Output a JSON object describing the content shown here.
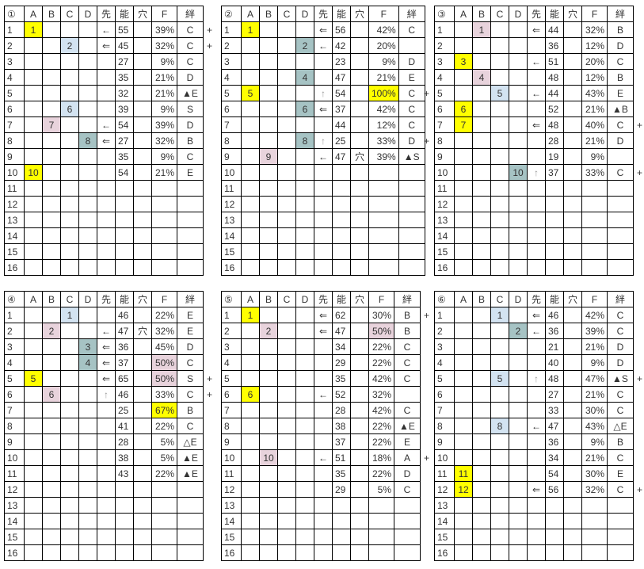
{
  "headers": [
    "A",
    "B",
    "C",
    "D",
    "先",
    "能",
    "穴",
    "F",
    "絆"
  ],
  "column_colors": {
    "A": "#ffff00",
    "B": "#e8d3dc",
    "C": "#d3e3f1",
    "D": "#a6c3c4"
  },
  "row_fields": [
    "row",
    "A",
    "B",
    "C",
    "D",
    "先",
    "能",
    "穴",
    "F",
    "絆",
    "plus",
    "F_highlight"
  ],
  "tables": [
    {
      "label": "①",
      "rows": [
        [
          "1",
          "1",
          "",
          "",
          "",
          "←",
          "55",
          "",
          "39%",
          "C",
          "+",
          ""
        ],
        [
          "2",
          "",
          "",
          "2",
          "",
          "⇐",
          "45",
          "",
          "32%",
          "C",
          "+",
          ""
        ],
        [
          "3",
          "",
          "",
          "",
          "",
          "",
          "27",
          "",
          "9%",
          "C",
          "",
          ""
        ],
        [
          "4",
          "",
          "",
          "",
          "",
          "",
          "35",
          "",
          "21%",
          "D",
          "",
          ""
        ],
        [
          "5",
          "",
          "",
          "",
          "",
          "",
          "32",
          "",
          "21%",
          "▲E",
          "",
          ""
        ],
        [
          "6",
          "",
          "",
          "6",
          "",
          "",
          "39",
          "",
          "9%",
          "S",
          "",
          ""
        ],
        [
          "7",
          "",
          "7",
          "",
          "",
          "←",
          "54",
          "",
          "39%",
          "D",
          "",
          ""
        ],
        [
          "8",
          "",
          "",
          "",
          "8",
          "⇐",
          "27",
          "",
          "32%",
          "B",
          "",
          ""
        ],
        [
          "9",
          "",
          "",
          "",
          "",
          "",
          "35",
          "",
          "9%",
          "C",
          "",
          ""
        ],
        [
          "10",
          "10",
          "",
          "",
          "",
          "",
          "54",
          "",
          "21%",
          "E",
          "",
          ""
        ],
        [
          "11"
        ],
        [
          "12"
        ],
        [
          "13"
        ],
        [
          "14"
        ],
        [
          "15"
        ],
        [
          "16"
        ]
      ]
    },
    {
      "label": "②",
      "rows": [
        [
          "1",
          "1",
          "",
          "",
          "",
          "⇐",
          "56",
          "",
          "42%",
          "C",
          "",
          ""
        ],
        [
          "2",
          "",
          "",
          "",
          "2",
          "←",
          "42",
          "",
          "20%",
          "",
          "",
          ""
        ],
        [
          "3",
          "",
          "",
          "",
          "",
          "",
          "23",
          "",
          "9%",
          "D",
          "",
          ""
        ],
        [
          "4",
          "",
          "",
          "",
          "4",
          "",
          "47",
          "",
          "21%",
          "E",
          "",
          ""
        ],
        [
          "5",
          "5",
          "",
          "",
          "",
          "↑",
          "54",
          "",
          "100%",
          "C",
          "+",
          "yellow"
        ],
        [
          "6",
          "",
          "",
          "",
          "6",
          "⇐",
          "37",
          "",
          "42%",
          "C",
          "",
          ""
        ],
        [
          "7",
          "",
          "",
          "",
          "",
          "",
          "44",
          "",
          "12%",
          "C",
          "",
          ""
        ],
        [
          "8",
          "",
          "",
          "",
          "8",
          "↑",
          "25",
          "",
          "33%",
          "D",
          "+",
          ""
        ],
        [
          "9",
          "",
          "9",
          "",
          "",
          "←",
          "47",
          "穴",
          "39%",
          "▲S",
          "",
          ""
        ],
        [
          "10"
        ],
        [
          "11"
        ],
        [
          "12"
        ],
        [
          "13"
        ],
        [
          "14"
        ],
        [
          "15"
        ],
        [
          "16"
        ]
      ]
    },
    {
      "label": "③",
      "rows": [
        [
          "1",
          "",
          "1",
          "",
          "",
          "⇐",
          "44",
          "",
          "32%",
          "B",
          "",
          ""
        ],
        [
          "2",
          "",
          "",
          "",
          "",
          "",
          "36",
          "",
          "12%",
          "D",
          "",
          ""
        ],
        [
          "3",
          "3",
          "",
          "",
          "",
          "←",
          "51",
          "",
          "20%",
          "C",
          "",
          ""
        ],
        [
          "4",
          "",
          "4",
          "",
          "",
          "",
          "48",
          "",
          "12%",
          "B",
          "",
          ""
        ],
        [
          "5",
          "",
          "",
          "5",
          "",
          "←",
          "44",
          "",
          "43%",
          "E",
          "",
          ""
        ],
        [
          "6",
          "6",
          "",
          "",
          "",
          "",
          "52",
          "",
          "21%",
          "▲B",
          "",
          ""
        ],
        [
          "7",
          "7",
          "",
          "",
          "",
          "⇐",
          "48",
          "",
          "40%",
          "C",
          "+",
          ""
        ],
        [
          "8",
          "",
          "",
          "",
          "",
          "",
          "28",
          "",
          "21%",
          "D",
          "",
          ""
        ],
        [
          "9",
          "",
          "",
          "",
          "",
          "",
          "19",
          "",
          "9%",
          "",
          "",
          ""
        ],
        [
          "10",
          "",
          "",
          "",
          "10",
          "↑",
          "37",
          "",
          "33%",
          "C",
          "+",
          ""
        ],
        [
          "11"
        ],
        [
          "12"
        ],
        [
          "13"
        ],
        [
          "14"
        ],
        [
          "15"
        ],
        [
          "16"
        ]
      ]
    },
    {
      "label": "④",
      "rows": [
        [
          "1",
          "",
          "",
          "1",
          "",
          "",
          "46",
          "",
          "22%",
          "E",
          "",
          ""
        ],
        [
          "2",
          "",
          "2",
          "",
          "",
          "←",
          "47",
          "穴",
          "32%",
          "E",
          "",
          ""
        ],
        [
          "3",
          "",
          "",
          "",
          "3",
          "⇐",
          "36",
          "",
          "45%",
          "D",
          "",
          ""
        ],
        [
          "4",
          "",
          "",
          "",
          "4",
          "⇐",
          "37",
          "",
          "50%",
          "C",
          "",
          "pink"
        ],
        [
          "5",
          "5",
          "",
          "",
          "",
          "⇐",
          "65",
          "",
          "50%",
          "S",
          "+",
          "pink"
        ],
        [
          "6",
          "",
          "6",
          "",
          "",
          "↑",
          "46",
          "",
          "33%",
          "C",
          "+",
          ""
        ],
        [
          "7",
          "",
          "",
          "",
          "",
          "",
          "25",
          "",
          "67%",
          "B",
          "",
          "yellow"
        ],
        [
          "8",
          "",
          "",
          "",
          "",
          "",
          "41",
          "",
          "22%",
          "C",
          "",
          ""
        ],
        [
          "9",
          "",
          "",
          "",
          "",
          "",
          "28",
          "",
          "5%",
          "△E",
          "",
          ""
        ],
        [
          "10",
          "",
          "",
          "",
          "",
          "",
          "38",
          "",
          "5%",
          "▲E",
          "",
          ""
        ],
        [
          "11",
          "",
          "",
          "",
          "",
          "",
          "43",
          "",
          "22%",
          "▲E",
          "",
          ""
        ],
        [
          "12"
        ],
        [
          "13"
        ],
        [
          "14"
        ],
        [
          "15"
        ],
        [
          "16"
        ]
      ]
    },
    {
      "label": "⑤",
      "rows": [
        [
          "1",
          "1",
          "",
          "",
          "",
          "⇐",
          "62",
          "",
          "30%",
          "B",
          "+",
          ""
        ],
        [
          "2",
          "",
          "2",
          "",
          "",
          "⇐",
          "47",
          "",
          "50%",
          "B",
          "",
          "pink"
        ],
        [
          "3",
          "",
          "",
          "",
          "",
          "",
          "34",
          "",
          "22%",
          "C",
          "",
          ""
        ],
        [
          "4",
          "",
          "",
          "",
          "",
          "",
          "29",
          "",
          "22%",
          "C",
          "",
          ""
        ],
        [
          "5",
          "",
          "",
          "",
          "",
          "",
          "35",
          "",
          "42%",
          "C",
          "",
          ""
        ],
        [
          "6",
          "6",
          "",
          "",
          "",
          "←",
          "52",
          "",
          "32%",
          "",
          "",
          ""
        ],
        [
          "7",
          "",
          "",
          "",
          "",
          "",
          "28",
          "",
          "42%",
          "C",
          "",
          ""
        ],
        [
          "8",
          "",
          "",
          "",
          "",
          "",
          "38",
          "",
          "22%",
          "▲E",
          "",
          ""
        ],
        [
          "9",
          "",
          "",
          "",
          "",
          "",
          "37",
          "",
          "22%",
          "E",
          "",
          ""
        ],
        [
          "10",
          "",
          "10",
          "",
          "",
          "←",
          "51",
          "",
          "18%",
          "A",
          "+",
          ""
        ],
        [
          "11",
          "",
          "",
          "",
          "",
          "",
          "35",
          "",
          "22%",
          "D",
          "",
          ""
        ],
        [
          "12",
          "",
          "",
          "",
          "",
          "",
          "29",
          "",
          "5%",
          "C",
          "",
          ""
        ],
        [
          "13"
        ],
        [
          "14"
        ],
        [
          "15"
        ],
        [
          "16"
        ]
      ]
    },
    {
      "label": "⑥",
      "rows": [
        [
          "1",
          "",
          "",
          "1",
          "",
          "⇐",
          "46",
          "",
          "42%",
          "C",
          "",
          ""
        ],
        [
          "2",
          "",
          "",
          "",
          "2",
          "←",
          "36",
          "",
          "39%",
          "C",
          "",
          ""
        ],
        [
          "3",
          "",
          "",
          "",
          "",
          "",
          "21",
          "",
          "21%",
          "D",
          "",
          ""
        ],
        [
          "4",
          "",
          "",
          "",
          "",
          "",
          "40",
          "",
          "9%",
          "D",
          "",
          ""
        ],
        [
          "5",
          "",
          "",
          "5",
          "",
          "↑",
          "48",
          "",
          "47%",
          "▲S",
          "+",
          ""
        ],
        [
          "6",
          "",
          "",
          "",
          "",
          "",
          "27",
          "",
          "21%",
          "C",
          "",
          ""
        ],
        [
          "7",
          "",
          "",
          "",
          "",
          "",
          "33",
          "",
          "30%",
          "C",
          "",
          ""
        ],
        [
          "8",
          "",
          "",
          "8",
          "",
          "←",
          "47",
          "",
          "43%",
          "△E",
          "",
          ""
        ],
        [
          "9",
          "",
          "",
          "",
          "",
          "",
          "36",
          "",
          "9%",
          "B",
          "",
          ""
        ],
        [
          "10",
          "",
          "",
          "",
          "",
          "",
          "34",
          "",
          "21%",
          "C",
          "",
          ""
        ],
        [
          "11",
          "11",
          "",
          "",
          "",
          "",
          "54",
          "",
          "30%",
          "E",
          "",
          ""
        ],
        [
          "12",
          "12",
          "",
          "",
          "",
          "⇐",
          "56",
          "",
          "32%",
          "C",
          "+",
          ""
        ],
        [
          "13"
        ],
        [
          "14"
        ],
        [
          "15"
        ],
        [
          "16"
        ]
      ]
    }
  ]
}
